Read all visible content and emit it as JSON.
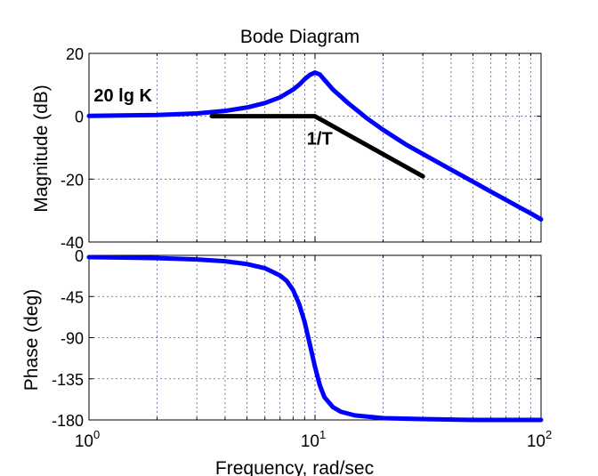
{
  "chart_data": [
    {
      "type": "line",
      "panel": "magnitude",
      "title": "Bode Diagram",
      "ylabel": "Magnitude (dB)",
      "xscale": "log",
      "xlim": [
        1,
        100
      ],
      "ylim": [
        -40,
        20
      ],
      "yticks": [
        {
          "value": 20,
          "label": "20"
        },
        {
          "value": 0,
          "label": "0"
        },
        {
          "value": -20,
          "label": "-20"
        },
        {
          "value": -40,
          "label": "-40"
        }
      ],
      "grid": true,
      "series": [
        {
          "color": "#0000ff",
          "x": [
            1,
            2,
            3,
            4,
            5,
            6,
            7,
            8,
            8.5,
            9,
            9.5,
            10,
            10.5,
            11,
            12,
            14,
            17,
            20,
            25,
            30,
            40,
            50,
            60,
            70,
            80,
            90,
            100
          ],
          "y": [
            0.1,
            0.4,
            0.9,
            1.7,
            2.8,
            4.2,
            6.0,
            8.5,
            10.0,
            11.8,
            13.2,
            13.9,
            13.3,
            11.6,
            8.5,
            4.2,
            -0.7,
            -4.3,
            -8.8,
            -12.0,
            -17.0,
            -20.8,
            -24.0,
            -26.6,
            -28.9,
            -30.9,
            -32.8
          ]
        },
        {
          "color": "#000000",
          "x": [
            3.5,
            10,
            30
          ],
          "y": [
            0,
            0,
            -19.1
          ]
        }
      ],
      "annotations": [
        {
          "text": "20 lg K",
          "x": 1.05,
          "y": 4.7
        },
        {
          "text": "1/T",
          "x": 9.2,
          "y": -9
        }
      ]
    },
    {
      "type": "line",
      "panel": "phase",
      "ylabel": "Phase (deg)",
      "xlabel": "Frequency, rad/sec",
      "xscale": "log",
      "xlim": [
        1,
        100
      ],
      "ylim": [
        -180,
        0
      ],
      "yticks": [
        {
          "value": 0,
          "label": "0"
        },
        {
          "value": -45,
          "label": "-45"
        },
        {
          "value": -90,
          "label": "-90"
        },
        {
          "value": -135,
          "label": "-135"
        },
        {
          "value": -180,
          "label": "-180"
        }
      ],
      "xticks": [
        {
          "value": 1,
          "base": "10",
          "exp": "0"
        },
        {
          "value": 10,
          "base": "10",
          "exp": "1"
        },
        {
          "value": 100,
          "base": "10",
          "exp": "2"
        }
      ],
      "grid": true,
      "series": [
        {
          "color": "#0000ff",
          "x": [
            1,
            1.5,
            2,
            3,
            4,
            5,
            6,
            7,
            7.5,
            8,
            8.5,
            9,
            9.5,
            10,
            10.5,
            11,
            12,
            13,
            15,
            20,
            30,
            50,
            100
          ],
          "y": [
            -2,
            -2.5,
            -3,
            -4.5,
            -6.5,
            -9.5,
            -14,
            -22,
            -28,
            -38,
            -53,
            -73,
            -98,
            -122,
            -142,
            -155,
            -166,
            -171,
            -175,
            -178,
            -179,
            -180,
            -180
          ]
        }
      ]
    }
  ]
}
